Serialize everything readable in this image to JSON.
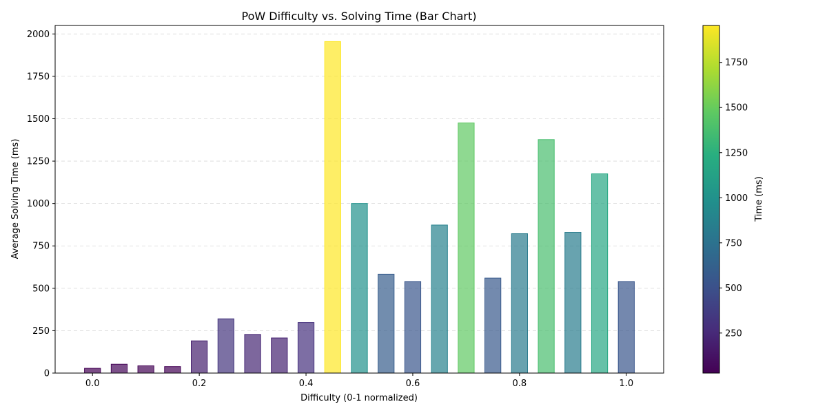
{
  "chart_data": {
    "type": "bar",
    "title": "PoW Difficulty vs. Solving Time (Bar Chart)",
    "xlabel": "Difficulty (0-1 normalized)",
    "ylabel": "Average Solving Time (ms)",
    "x": [
      0.0,
      0.05,
      0.1,
      0.15,
      0.2,
      0.25,
      0.3,
      0.35,
      0.4,
      0.45,
      0.5,
      0.55,
      0.6,
      0.65,
      0.7,
      0.75,
      0.8,
      0.85,
      0.9,
      0.95,
      1.0
    ],
    "values": [
      28,
      52,
      43,
      38,
      190,
      320,
      228,
      207,
      298,
      1955,
      1000,
      583,
      540,
      873,
      1475,
      560,
      822,
      1377,
      830,
      1175,
      540
    ],
    "xlim": [
      -0.07,
      1.07
    ],
    "ylim": [
      0,
      2050
    ],
    "xticks": [
      0.0,
      0.2,
      0.4,
      0.6,
      0.8,
      1.0
    ],
    "xtick_labels": [
      "0.0",
      "0.2",
      "0.4",
      "0.6",
      "0.8",
      "1.0"
    ],
    "yticks": [
      0,
      250,
      500,
      750,
      1000,
      1250,
      1500,
      1750,
      2000
    ],
    "ytick_labels": [
      "0",
      "250",
      "500",
      "750",
      "1000",
      "1250",
      "1500",
      "1750",
      "2000"
    ],
    "grid": "y-dashed",
    "colormap": "viridis",
    "colorbar": {
      "label": "Time (ms)",
      "range": [
        28,
        1955
      ],
      "ticks": [
        250,
        500,
        750,
        1000,
        1250,
        1500,
        1750
      ],
      "tick_labels": [
        "250",
        "500",
        "750",
        "1000",
        "1250",
        "1500",
        "1750"
      ]
    }
  }
}
